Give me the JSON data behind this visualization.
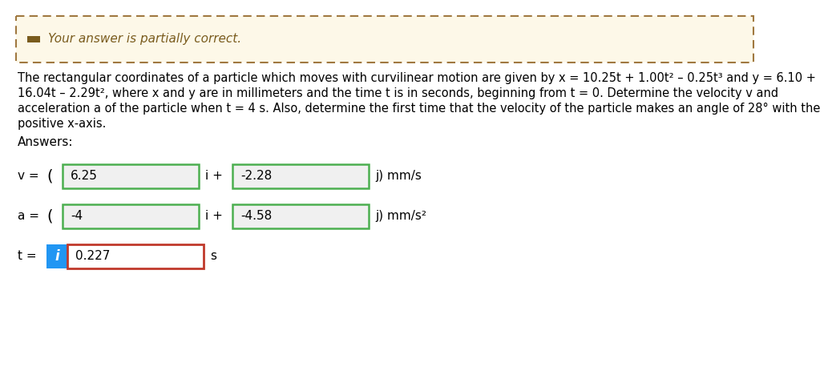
{
  "bg_color": "#ffffff",
  "banner_bg": "#fdf8e8",
  "banner_border": "#a07840",
  "banner_text": "Your answer is partially correct.",
  "banner_icon_color": "#7a5c1e",
  "problem_text_line1": "The rectangular coordinates of a particle which moves with curvilinear motion are given by x = 10.25t + 1.00t² – 0.25t³ and y = 6.10 +",
  "problem_text_line2": "16.04t – 2.29t², where x and y are in millimeters and the time t is in seconds, beginning from t = 0. Determine the velocity v and",
  "problem_text_line3": "acceleration a of the particle when t = 4 s. Also, determine the first time that the velocity of the particle makes an angle of 28° with the",
  "problem_text_line4": "positive x-axis.",
  "answers_label": "Answers:",
  "v_label": "v =",
  "v_val1": "6.25",
  "v_sep1": "i +",
  "v_val2": "-2.28",
  "v_suffix": "j) mm/s",
  "v_open_paren": "(",
  "a_label": "a =",
  "a_val1": "-4",
  "a_sep1": "i +",
  "a_val2": "-4.58",
  "a_suffix": "j) mm/s²",
  "a_open_paren": "(",
  "t_label": "t =",
  "t_icon_text": "i",
  "t_icon_bg": "#2196f3",
  "t_val": "0.227",
  "t_unit": "s",
  "box_border_correct": "#4caf50",
  "box_border_incorrect": "#c0392b",
  "box_bg": "#f0f0f0",
  "text_color": "#000000",
  "font_size_body": 10.5,
  "font_size_banner": 11,
  "font_size_answers": 11
}
